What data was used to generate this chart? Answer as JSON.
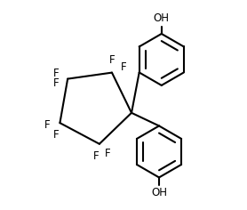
{
  "bg_color": "#ffffff",
  "line_color": "#000000",
  "line_width": 1.5,
  "font_size": 8.5,
  "fig_width": 2.78,
  "fig_height": 2.36,
  "dpi": 100,
  "xlim": [
    0,
    10
  ],
  "ylim": [
    0,
    8.5
  ]
}
